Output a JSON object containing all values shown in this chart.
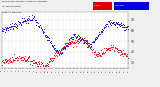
{
  "bg_color": "#f0f0f0",
  "plot_bg": "#ffffff",
  "blue_color": "#0000dd",
  "red_color": "#dd0000",
  "ylim": [
    25,
    77
  ],
  "ytick_vals": [
    30,
    40,
    50,
    60,
    70
  ],
  "n_points": 288,
  "seed": 7,
  "legend_red": "Temp",
  "legend_blue": "Humidity"
}
